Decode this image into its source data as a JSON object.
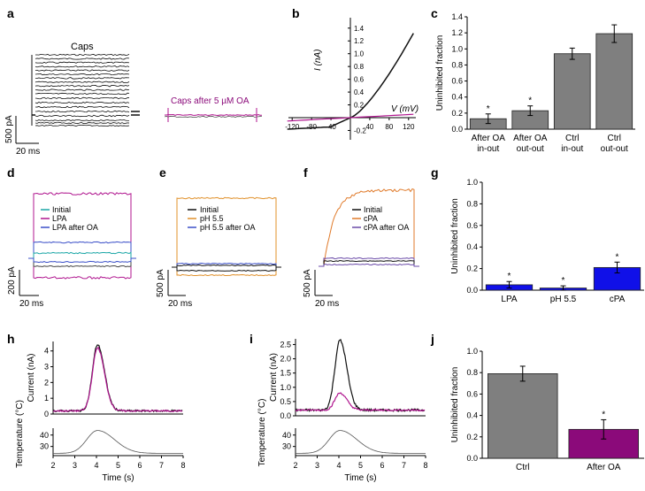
{
  "panels": {
    "a": "a",
    "b": "b",
    "c": "c",
    "d": "d",
    "e": "e",
    "f": "f",
    "g": "g",
    "h": "h",
    "i": "i",
    "j": "j"
  },
  "colors": {
    "gray_bar": "#7f7f7f",
    "blue_bar": "#1010e8",
    "purple_bar": "#8b0a7a",
    "magenta": "#b0168f",
    "teal": "#1aa6a6",
    "blue_trace": "#3a4fc8",
    "orange": "#e0902a",
    "purple_trace": "#6a4aa8"
  },
  "panel_a": {
    "label_caps": "Caps",
    "label_after": "Caps after 5 µM OA",
    "scale_y": "500 pA",
    "scale_x": "20 ms"
  },
  "panel_b": {
    "ylabel": "I (nA)",
    "xlabel": "V (mV)",
    "yticks": [
      "1.4",
      "1.2",
      "1.0",
      "0.8",
      "0.6",
      "0.4",
      "0.2",
      "-0.2"
    ],
    "xticks": [
      "-120",
      "-80",
      "-40",
      "40",
      "80",
      "120"
    ]
  },
  "panel_d": {
    "legend": [
      "Initial",
      "LPA",
      "LPA after OA"
    ],
    "scale_y": "200 pA",
    "scale_x": "20 ms"
  },
  "panel_e": {
    "legend": [
      "Initial",
      "pH 5.5",
      "pH 5.5 after OA"
    ],
    "scale_y": "500 pA",
    "scale_x": "20 ms"
  },
  "panel_f": {
    "legend": [
      "Initial",
      "cPA",
      "cPA after OA"
    ],
    "scale_y": "500 pA",
    "scale_x": "20 ms"
  },
  "panel_h": {
    "ylabel_top": "Current (nA)",
    "ylabel_bottom": "Temperature (°C)",
    "xlabel": "Time (s)",
    "yticks_top": [
      "4",
      "3",
      "2",
      "1",
      "0"
    ],
    "yticks_bottom": [
      "40",
      "30"
    ],
    "xticks": [
      "2",
      "3",
      "4",
      "5",
      "6",
      "7",
      "8"
    ]
  },
  "panel_i": {
    "ylabel_top": "Current (nA)",
    "ylabel_bottom": "Temperature (°C)",
    "xlabel": "Time (s)",
    "yticks_top": [
      "2.5",
      "2.0",
      "1.5",
      "1.0",
      "0.5",
      "0.0"
    ],
    "yticks_bottom": [
      "40",
      "30"
    ],
    "xticks": [
      "2",
      "3",
      "4",
      "5",
      "6",
      "7",
      "8"
    ]
  },
  "chart_data": [
    {
      "id": "c",
      "type": "bar",
      "ylabel": "Uninhibited fraction",
      "ylim": [
        0,
        1.4
      ],
      "yticks": [
        "0.0",
        "0.2",
        "0.4",
        "0.6",
        "0.8",
        "1.0",
        "1.2",
        "1.4"
      ],
      "categories": [
        [
          "After OA",
          "in-out"
        ],
        [
          "After OA",
          "out-out"
        ],
        [
          "Ctrl",
          "in-out"
        ],
        [
          "Ctrl",
          "out-out"
        ]
      ],
      "values": [
        0.13,
        0.23,
        0.94,
        1.19
      ],
      "errors": [
        0.06,
        0.06,
        0.07,
        0.11
      ],
      "significance": [
        "*",
        "*",
        "",
        ""
      ]
    },
    {
      "id": "g",
      "type": "bar",
      "ylabel": "Uninhibited fraction",
      "ylim": [
        0,
        1.0
      ],
      "yticks": [
        "0.0",
        "0.2",
        "0.4",
        "0.6",
        "0.8",
        "1.0"
      ],
      "categories": [
        [
          "LPA"
        ],
        [
          "pH 5.5"
        ],
        [
          "cPA"
        ]
      ],
      "values": [
        0.05,
        0.02,
        0.21
      ],
      "errors": [
        0.03,
        0.02,
        0.05
      ],
      "significance": [
        "*",
        "*",
        "*"
      ]
    },
    {
      "id": "j",
      "type": "bar",
      "ylabel": "Uninhibited fraction",
      "ylim": [
        0,
        1.0
      ],
      "yticks": [
        "0.0",
        "0.2",
        "0.4",
        "0.6",
        "0.8",
        "1.0"
      ],
      "categories": [
        [
          "Ctrl"
        ],
        [
          "After OA"
        ]
      ],
      "values": [
        0.79,
        0.27
      ],
      "errors": [
        0.07,
        0.09
      ],
      "significance": [
        "",
        "*"
      ]
    }
  ]
}
